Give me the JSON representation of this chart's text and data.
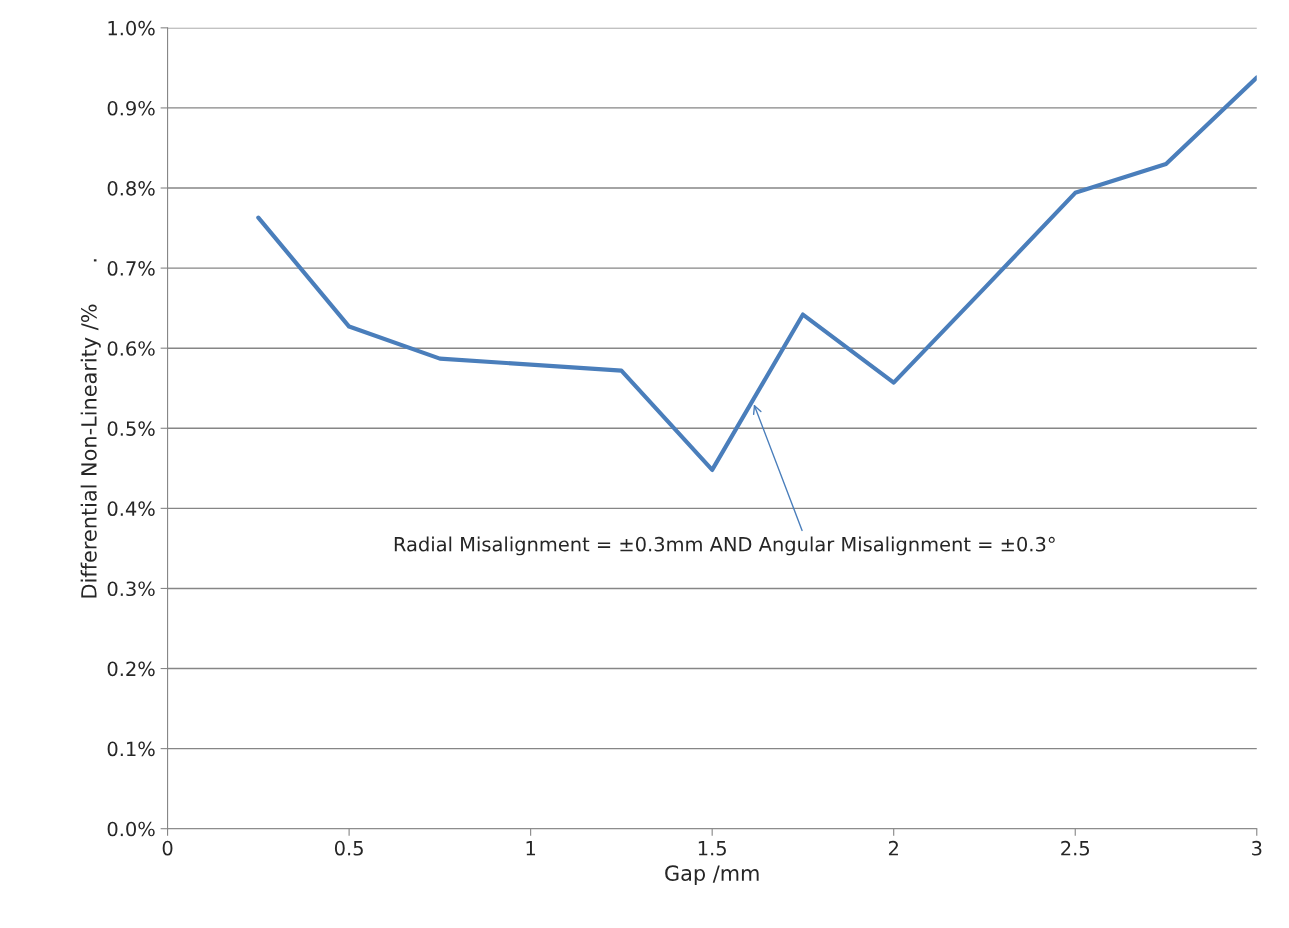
{
  "chart_data": {
    "type": "line",
    "xlabel": "Gap /mm",
    "ylabel": "Differential Non-Linearity /%      .",
    "x": [
      0.25,
      0.5,
      0.75,
      1.25,
      1.5,
      1.75,
      2.0,
      2.25,
      2.5,
      2.75,
      3.0
    ],
    "series": [
      {
        "color": "#4a7ebb",
        "values": [
          0.763,
          0.627,
          0.587,
          0.572,
          0.448,
          0.642,
          0.557,
          0.675,
          0.794,
          0.83,
          0.938
        ]
      }
    ],
    "xlim": [
      0,
      3
    ],
    "xticks": [
      0,
      0.5,
      1,
      1.5,
      2,
      2.5,
      3
    ],
    "ylim": [
      0,
      1.0
    ],
    "yticks": [
      {
        "value": 0,
        "label": "0.0%"
      },
      {
        "value": 0.1,
        "label": "0.1%"
      },
      {
        "value": 0.2,
        "label": "0.2%"
      },
      {
        "value": 0.3,
        "label": "0.3%"
      },
      {
        "value": 0.4,
        "label": "0.4%"
      },
      {
        "value": 0.5,
        "label": "0.5%"
      },
      {
        "value": 0.6,
        "label": "0.6%"
      },
      {
        "value": 0.7,
        "label": "0.7%"
      },
      {
        "value": 0.8,
        "label": "0.8%"
      },
      {
        "value": 0.9,
        "label": "0.9%"
      },
      {
        "value": 1.0,
        "label": "1.0%"
      }
    ],
    "grid": "y",
    "marker": "none",
    "line_style": "solid",
    "annotations": [
      {
        "text": "Radial Misalignment = ±0.3mm AND Angular Misalignment = ±0.3°",
        "x": 1.615,
        "y": 0.53
      }
    ]
  }
}
